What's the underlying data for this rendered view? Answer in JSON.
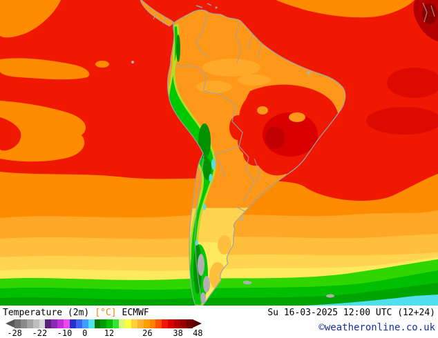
{
  "header": {
    "product": "Temperature (2m)",
    "unit": "[°C]",
    "model": "ECMWF",
    "datetime": "Su 16-03-2025 12:00 UTC (12+24)",
    "copyright": "©weatheronline.co.uk"
  },
  "legend": {
    "ticks": [
      {
        "label": "-28",
        "pos": 0.046
      },
      {
        "label": "-22",
        "pos": 0.174
      },
      {
        "label": "-10",
        "pos": 0.301
      },
      {
        "label": "0",
        "pos": 0.404
      },
      {
        "label": "12",
        "pos": 0.528
      },
      {
        "label": "26",
        "pos": 0.723
      },
      {
        "label": "38",
        "pos": 0.879
      },
      {
        "label": "48",
        "pos": 0.98
      }
    ],
    "arrow_left_color": "#565656",
    "arrow_right_color": "#540000",
    "cells": [
      "#707070",
      "#8a8a8a",
      "#a4a4a4",
      "#bebebe",
      "#d8d8d8",
      "#5a2080",
      "#8928b8",
      "#c030d8",
      "#f048f0",
      "#2830cc",
      "#3c64f0",
      "#3ca0ff",
      "#50e0f0",
      "#007800",
      "#009c00",
      "#00c000",
      "#38e038",
      "#d8f878",
      "#ffff38",
      "#ffd038",
      "#ffb030",
      "#ffa000",
      "#ff8000",
      "#ff5000",
      "#f01800",
      "#d80000",
      "#b40000",
      "#940000",
      "#740000"
    ]
  },
  "map": {
    "region": "South America",
    "kind": "2m temperature forecast map",
    "palette": {
      "sea_hot_red": "#f01800",
      "dark_red_patch": "#dc0a00",
      "africa_dark_red": "#b40000",
      "orange": "#ff8c00",
      "light_orange": "#ffa726",
      "amber": "#ffbe3c",
      "gold": "#ffd44e",
      "yellow": "#ffe95e",
      "bright_green": "#2fd600",
      "green": "#00be00",
      "dark_green": "#00a400",
      "andes_green": "#00c800",
      "andes_dark_green": "#009000",
      "cold_cyan": "#4fe0f0",
      "ice_gray": "#b0b0b0",
      "border_gray": "#9aa4ad",
      "land_orange": "#ff9718"
    }
  }
}
